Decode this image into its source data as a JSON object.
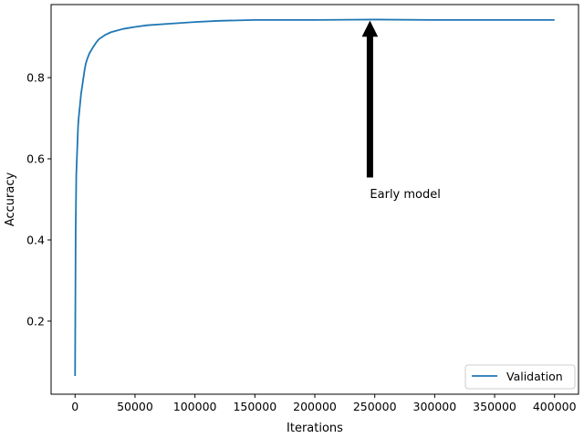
{
  "chart_data": {
    "type": "line",
    "title": "",
    "xlabel": "Iterations",
    "ylabel": "Accuracy",
    "xlim": [
      -20000,
      420000
    ],
    "ylim": [
      0.02,
      0.98
    ],
    "x_ticks": [
      0,
      50000,
      100000,
      150000,
      200000,
      250000,
      300000,
      350000,
      400000
    ],
    "x_tick_labels": [
      "0",
      "50000",
      "100000",
      "150000",
      "200000",
      "250000",
      "300000",
      "350000",
      "400000"
    ],
    "y_ticks": [
      0.2,
      0.4,
      0.6,
      0.8
    ],
    "y_tick_labels": [
      "0.2",
      "0.4",
      "0.6",
      "0.8"
    ],
    "grid": false,
    "legend": {
      "position": "bottom-right",
      "entries": [
        "Validation"
      ]
    },
    "series": [
      {
        "name": "Validation",
        "color": "#1f77b4",
        "points": [
          [
            0,
            0.065
          ],
          [
            500,
            0.42
          ],
          [
            1000,
            0.56
          ],
          [
            1500,
            0.6
          ],
          [
            2000,
            0.64
          ],
          [
            2500,
            0.68
          ],
          [
            3000,
            0.7
          ],
          [
            4000,
            0.73
          ],
          [
            5000,
            0.76
          ],
          [
            6000,
            0.78
          ],
          [
            7000,
            0.8
          ],
          [
            8000,
            0.82
          ],
          [
            9000,
            0.835
          ],
          [
            10000,
            0.845
          ],
          [
            12000,
            0.86
          ],
          [
            15000,
            0.875
          ],
          [
            18000,
            0.888
          ],
          [
            20000,
            0.895
          ],
          [
            25000,
            0.905
          ],
          [
            30000,
            0.912
          ],
          [
            40000,
            0.92
          ],
          [
            50000,
            0.925
          ],
          [
            60000,
            0.929
          ],
          [
            80000,
            0.933
          ],
          [
            100000,
            0.937
          ],
          [
            120000,
            0.94
          ],
          [
            150000,
            0.942
          ],
          [
            200000,
            0.942
          ],
          [
            250000,
            0.943
          ],
          [
            300000,
            0.942
          ],
          [
            350000,
            0.942
          ],
          [
            400000,
            0.942
          ]
        ]
      }
    ],
    "annotations": [
      {
        "text": "Early model",
        "arrow_from": [
          246000,
          0.555
        ],
        "arrow_to": [
          246000,
          0.938
        ]
      }
    ]
  }
}
